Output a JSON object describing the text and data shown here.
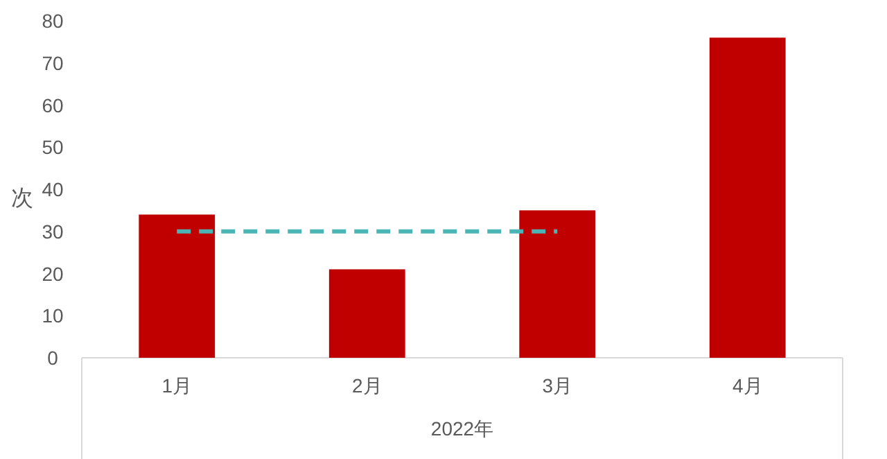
{
  "chart_data": {
    "type": "bar",
    "xlabel": "2022年",
    "ylabel": "次",
    "categories": [
      "1月",
      "2月",
      "3月",
      "4月"
    ],
    "ylim": [
      0,
      80
    ],
    "yticks": [
      0,
      10,
      20,
      30,
      40,
      50,
      60,
      70,
      80
    ],
    "series": [
      {
        "color": "#c00000",
        "values": [
          34,
          21,
          35,
          76
        ]
      },
      {
        "type": "line",
        "color": "#4bb5b5",
        "line_style": "dashed",
        "values": [
          30,
          30,
          30,
          null
        ]
      }
    ]
  }
}
